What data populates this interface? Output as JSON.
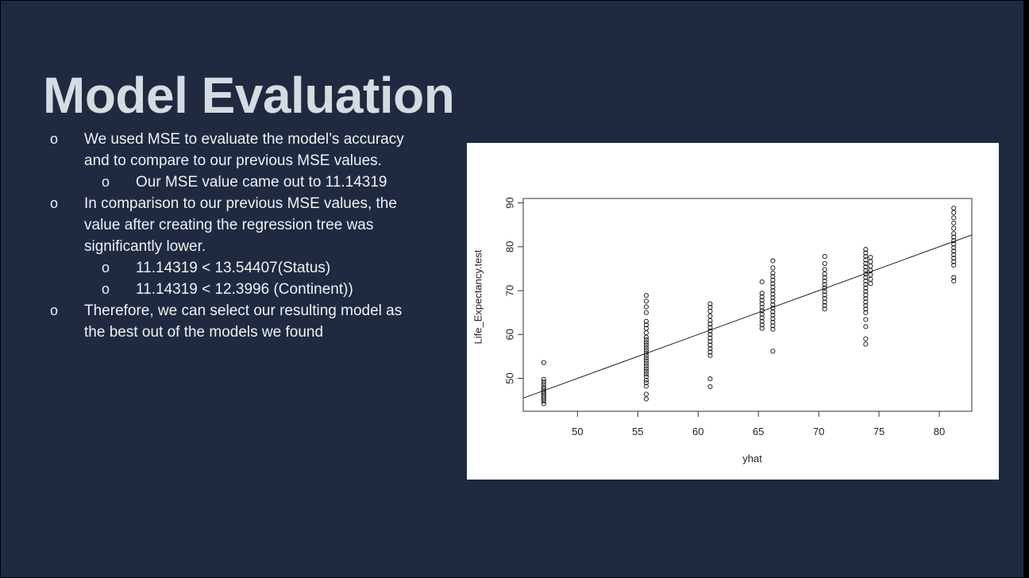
{
  "slide": {
    "title": "Model Evaluation",
    "bullets": [
      {
        "level": 1,
        "marker": "o",
        "text": "We used MSE to evaluate the model’s accuracy and to compare to our previous MSE values."
      },
      {
        "level": 2,
        "marker": "o",
        "text": "Our MSE value came out to 11.14319"
      },
      {
        "level": 1,
        "marker": "o",
        "text": "In comparison to our previous MSE values, the value after creating the regression tree was significantly  lower."
      },
      {
        "level": 2,
        "marker": "o",
        "text": "11.14319 < 13.54407(Status)"
      },
      {
        "level": 2,
        "marker": "o",
        "text": "11.14319 < 12.3996 (Continent))"
      },
      {
        "level": 1,
        "marker": "o",
        "text": "Therefore, we can select our resulting model as the best out of the models we found"
      }
    ]
  },
  "chart_data": {
    "type": "scatter",
    "xlabel": "yhat",
    "ylabel": "Life_Expectancy.test",
    "xlim": [
      45.5,
      82.7
    ],
    "ylim": [
      42.5,
      91
    ],
    "xticks": [
      50,
      55,
      60,
      65,
      70,
      75,
      80
    ],
    "yticks": [
      50,
      60,
      70,
      80,
      90
    ],
    "grid": false,
    "marker": "open-circle",
    "reference_line": {
      "intercept": 0,
      "slope": 1
    },
    "groups": [
      {
        "x": 47.2,
        "y": [
          44.2,
          44.8,
          45.3,
          45.8,
          46.2,
          46.6,
          47.0,
          47.5,
          48.0,
          48.6,
          49.2,
          49.8,
          53.6
        ]
      },
      {
        "x": 55.7,
        "y": [
          45.3,
          46.4,
          48.2,
          49.0,
          49.6,
          50.4,
          51.0,
          51.6,
          52.2,
          52.8,
          53.4,
          54.0,
          54.6,
          55.2,
          55.8,
          56.4,
          57.0,
          57.6,
          58.2,
          58.8,
          59.4,
          60.4,
          61.4,
          62.2,
          63.0,
          65.0,
          66.3,
          67.6,
          68.9
        ]
      },
      {
        "x": 61.0,
        "y": [
          48.1,
          49.9,
          55.2,
          56.0,
          56.8,
          57.6,
          58.4,
          59.2,
          60.0,
          60.8,
          61.6,
          62.4,
          63.2,
          64.2,
          65.3,
          66.2,
          67.0
        ]
      },
      {
        "x": 65.3,
        "y": [
          61.4,
          62.2,
          63.0,
          63.8,
          64.6,
          65.4,
          66.2,
          67.0,
          67.8,
          68.6,
          69.4,
          72.0
        ]
      },
      {
        "x": 66.2,
        "y": [
          56.2,
          61.2,
          62.0,
          62.8,
          63.6,
          64.4,
          65.2,
          66.0,
          66.8,
          67.6,
          68.4,
          69.2,
          70.0,
          70.8,
          71.6,
          72.4,
          73.2,
          74.0,
          75.2,
          76.8
        ]
      },
      {
        "x": 70.5,
        "y": [
          65.8,
          66.6,
          67.4,
          68.2,
          69.0,
          69.8,
          70.6,
          71.4,
          72.2,
          73.0,
          73.8,
          74.8,
          76.2,
          77.8
        ]
      },
      {
        "x": 73.9,
        "y": [
          57.8,
          59.0,
          61.8,
          63.4,
          65.0,
          65.8,
          66.6,
          67.4,
          68.2,
          69.0,
          69.8,
          70.6,
          71.4,
          72.2,
          73.0,
          73.8,
          74.6,
          75.4,
          76.2,
          77.0,
          77.8,
          78.6,
          79.4
        ]
      },
      {
        "x": 74.3,
        "y": [
          71.6,
          72.6,
          73.6,
          74.6,
          75.6,
          76.6,
          77.6
        ]
      },
      {
        "x": 81.2,
        "y": [
          72.2,
          73.0,
          75.8,
          76.6,
          77.4,
          78.2,
          79.0,
          79.8,
          80.6,
          81.4,
          82.2,
          83.0,
          84.2,
          85.4,
          86.6,
          87.8,
          88.8
        ]
      }
    ]
  }
}
